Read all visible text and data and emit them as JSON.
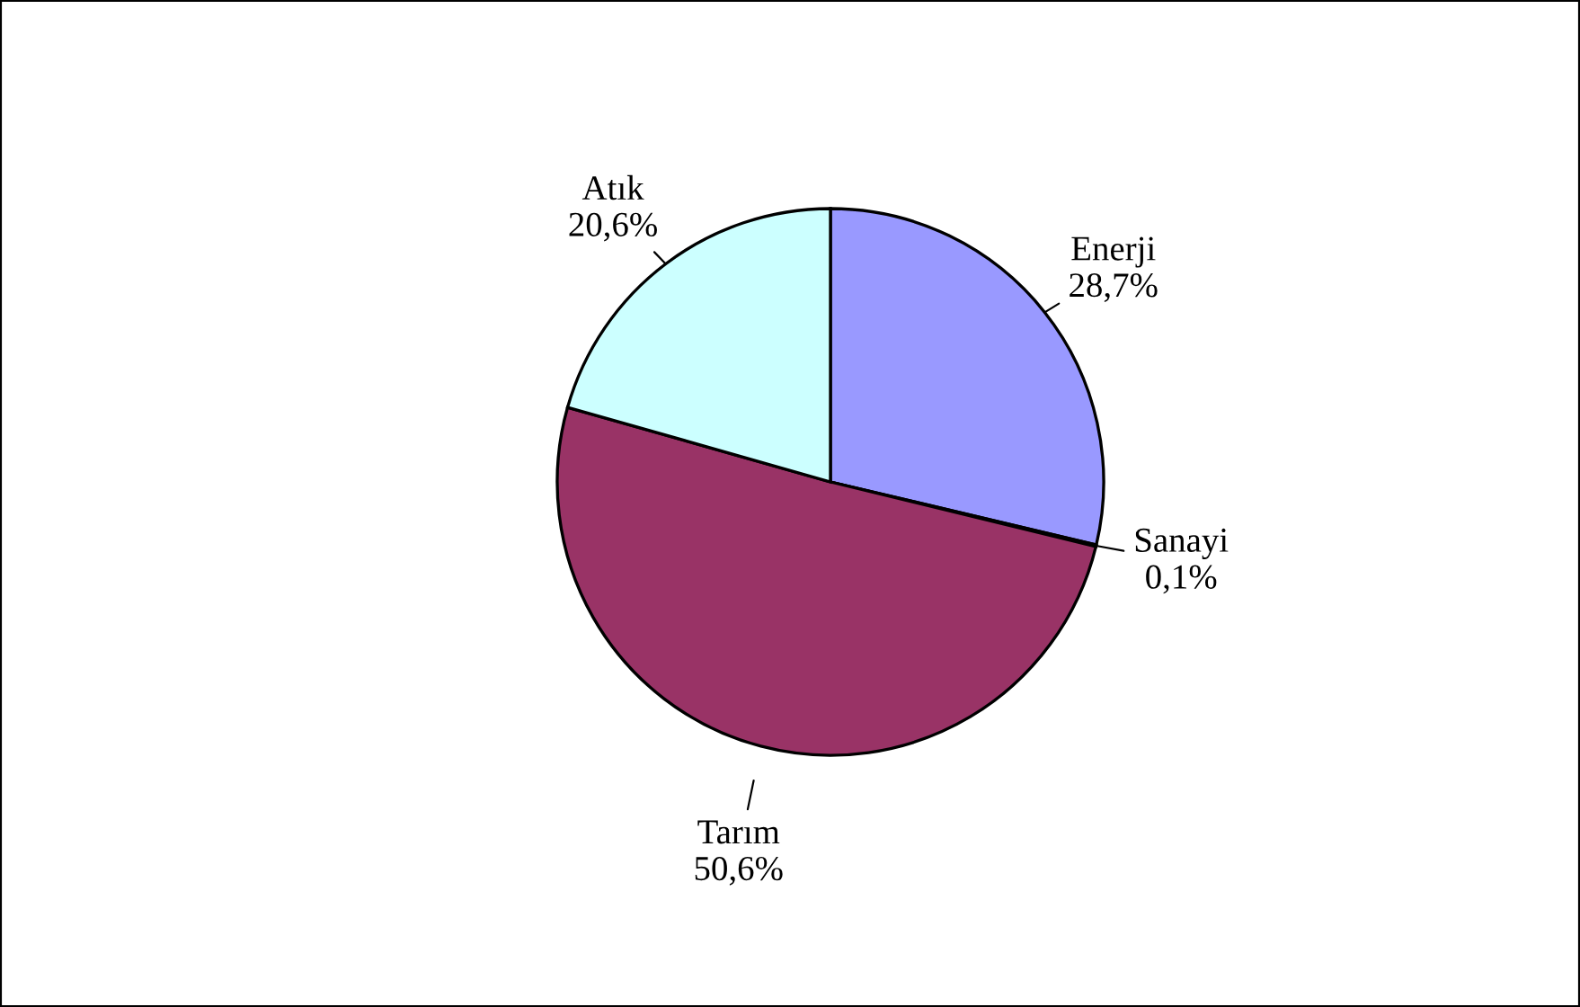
{
  "chart_data": {
    "type": "pie",
    "categories": [
      "Enerji",
      "Sanayi",
      "Tarım",
      "Atık"
    ],
    "values": [
      28.7,
      0.1,
      50.6,
      20.6
    ],
    "value_labels": [
      "28,7%",
      "0,1%",
      "50,6%",
      "20,6%"
    ],
    "colors": [
      "#9999ff",
      "#ffffcc",
      "#993366",
      "#ccffff"
    ],
    "legend": false
  }
}
